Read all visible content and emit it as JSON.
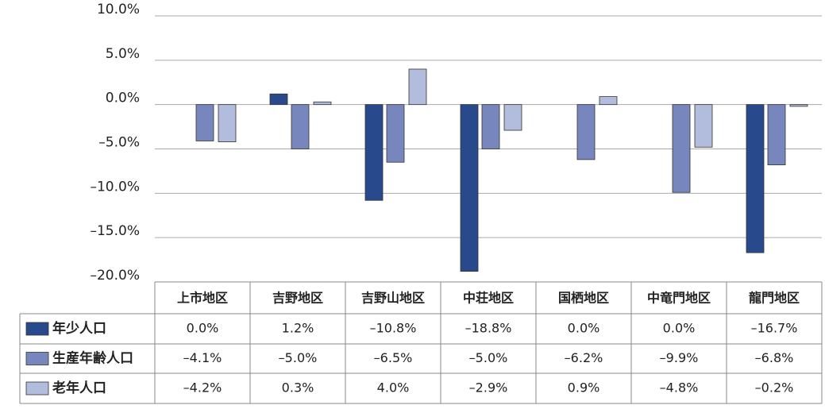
{
  "chart_data": {
    "type": "bar",
    "categories": [
      "上市地区",
      "吉野地区",
      "吉野山地区",
      "中荘地区",
      "国栖地区",
      "中竜門地区",
      "龍門地区"
    ],
    "series": [
      {
        "name": "年少人口",
        "color": "#284a8c",
        "values": [
          0.0,
          1.2,
          -10.8,
          -18.8,
          0.0,
          0.0,
          -16.7
        ],
        "value_labels": [
          "0.0%",
          "1.2%",
          "–10.8%",
          "–18.8%",
          "0.0%",
          "0.0%",
          "–16.7%"
        ]
      },
      {
        "name": "生産年齢人口",
        "color": "#7787bd",
        "values": [
          -4.1,
          -5.0,
          -6.5,
          -5.0,
          -6.2,
          -9.9,
          -6.8
        ],
        "value_labels": [
          "–4.1%",
          "–5.0%",
          "–6.5%",
          "–5.0%",
          "–6.2%",
          "–9.9%",
          "–6.8%"
        ]
      },
      {
        "name": "老年人口",
        "color": "#b2bcdc",
        "values": [
          -4.2,
          0.3,
          4.0,
          -2.9,
          0.9,
          -4.8,
          -0.2
        ],
        "value_labels": [
          "–4.2%",
          "0.3%",
          "4.0%",
          "–2.9%",
          "0.9%",
          "–4.8%",
          "–0.2%"
        ]
      }
    ],
    "ylim": [
      -20,
      10
    ],
    "yticks": [
      {
        "value": -20,
        "label": "–20.0%"
      },
      {
        "value": -15,
        "label": "–15.0%"
      },
      {
        "value": -10,
        "label": "–10.0%"
      },
      {
        "value": -5,
        "label": "–5.0%"
      },
      {
        "value": 0,
        "label": "0.0%"
      },
      {
        "value": 5,
        "label": "5.0%"
      },
      {
        "value": 10,
        "label": "10.0%"
      }
    ],
    "grid": true
  }
}
